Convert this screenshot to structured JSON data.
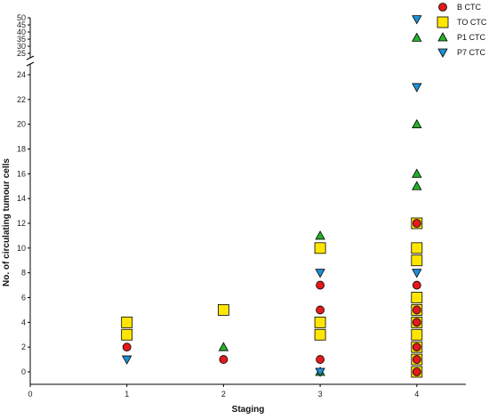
{
  "chart_data": {
    "type": "scatter",
    "xlabel": "Staging",
    "ylabel": "No. of circulating tumour cells",
    "xlim": [
      0,
      4.5
    ],
    "x_ticks": [
      0,
      1,
      2,
      3,
      4
    ],
    "y_axis_broken": true,
    "y_lower_ticks": [
      0,
      2,
      4,
      6,
      8,
      10,
      12,
      14,
      16,
      18,
      20,
      22,
      24
    ],
    "y_upper_ticks": [
      25,
      30,
      35,
      40,
      45,
      50
    ],
    "legend_placement": "top-right",
    "series": [
      {
        "name": "B CTC",
        "marker": "circle",
        "color": "#e31a1c",
        "points": [
          [
            1,
            2
          ],
          [
            2,
            1
          ],
          [
            3,
            7
          ],
          [
            3,
            5
          ],
          [
            3,
            1
          ],
          [
            4,
            12
          ],
          [
            4,
            7
          ],
          [
            4,
            5
          ],
          [
            4,
            4
          ],
          [
            4,
            2
          ],
          [
            4,
            1
          ],
          [
            4,
            0
          ]
        ]
      },
      {
        "name": "TO CTC",
        "marker": "square",
        "color": "#ffe600",
        "points": [
          [
            1,
            4
          ],
          [
            1,
            3
          ],
          [
            2,
            5
          ],
          [
            3,
            10
          ],
          [
            3,
            4
          ],
          [
            3,
            3
          ],
          [
            4,
            12
          ],
          [
            4,
            10
          ],
          [
            4,
            9
          ],
          [
            4,
            6
          ],
          [
            4,
            5
          ],
          [
            4,
            4
          ],
          [
            4,
            3
          ],
          [
            4,
            2
          ],
          [
            4,
            1
          ],
          [
            4,
            0
          ]
        ]
      },
      {
        "name": "P1 CTC",
        "marker": "triangle-up",
        "color": "#22b327",
        "points": [
          [
            2,
            2
          ],
          [
            3,
            11
          ],
          [
            3,
            0
          ],
          [
            4,
            36
          ],
          [
            4,
            20
          ],
          [
            4,
            16
          ],
          [
            4,
            15
          ]
        ]
      },
      {
        "name": "P7 CTC",
        "marker": "triangle-down",
        "color": "#1e90d6",
        "points": [
          [
            1,
            1
          ],
          [
            3,
            8
          ],
          [
            3,
            0
          ],
          [
            4,
            49
          ],
          [
            4,
            23
          ],
          [
            4,
            8
          ]
        ]
      }
    ]
  }
}
